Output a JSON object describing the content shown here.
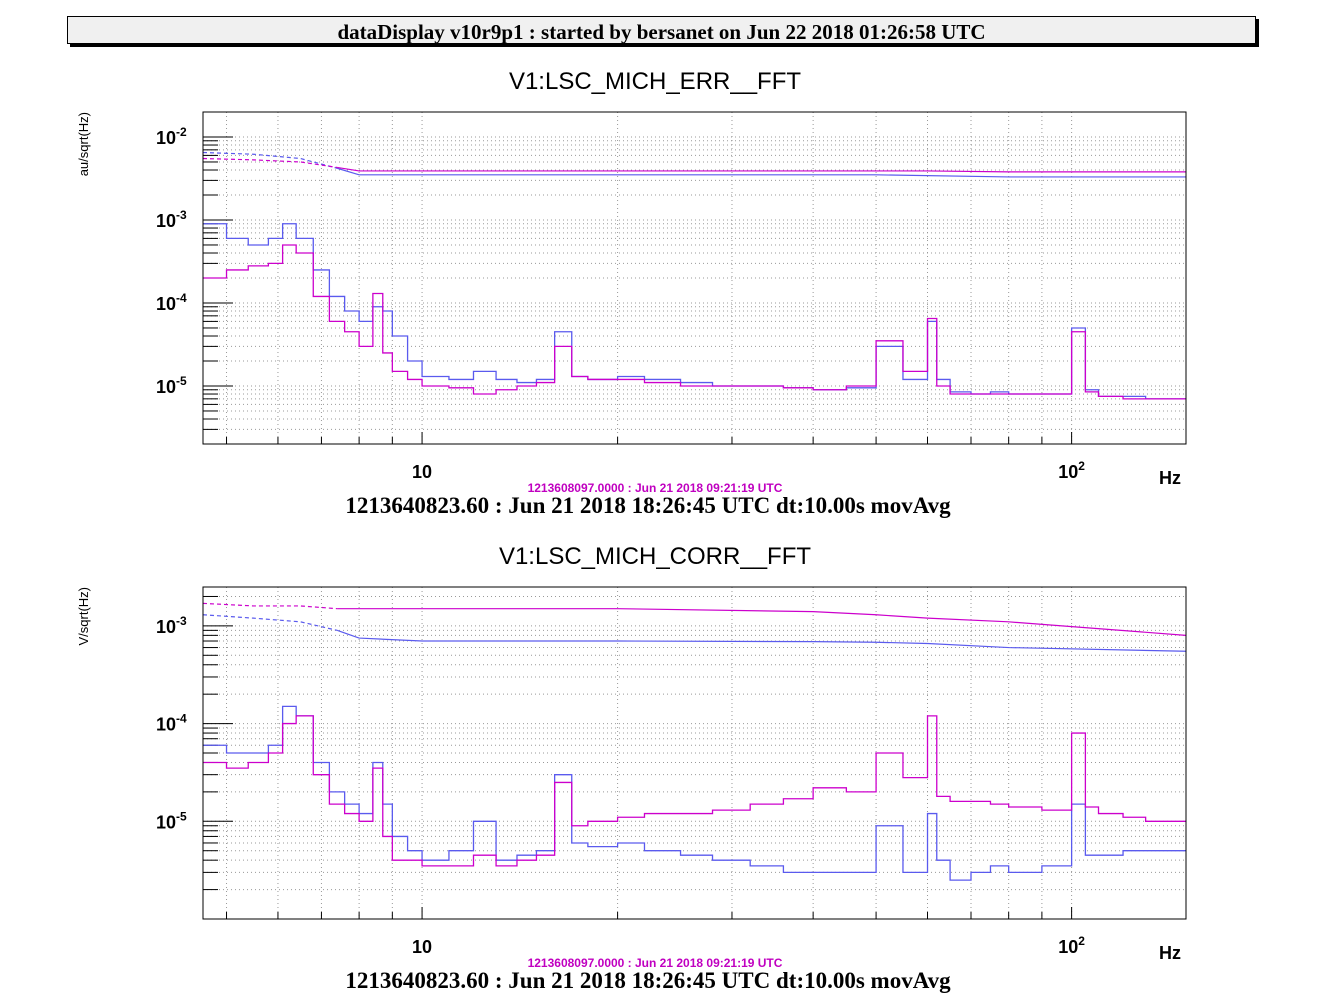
{
  "header": {
    "title": "dataDisplay v10r9p1 : started by bersanet on Jun 22 2018 01:26:58 UTC"
  },
  "colors": {
    "magenta": "#cc00cc",
    "blue": "#5a5aee",
    "header_bg": "#f0f0f0"
  },
  "panels": [
    {
      "title": "V1:LSC_MICH_ERR__FFT",
      "reference_time": "1213608097.0000 : Jun 21 2018 09:21:19 UTC",
      "footer": "1213640823.60 : Jun 21 2018 18:26:45 UTC dt:10.00s movAvg"
    },
    {
      "title": "V1:LSC_MICH_CORR__FFT",
      "reference_time": "1213608097.0000 : Jun 21 2018 09:21:19 UTC",
      "footer": "1213640823.60 : Jun 21 2018 18:26:45 UTC dt:10.00s movAvg"
    }
  ],
  "chart_data": [
    {
      "type": "line",
      "title": "V1:LSC_MICH_ERR__FFT",
      "xlabel": "Hz",
      "ylabel": "au/sqrt(Hz)",
      "xscale": "log",
      "yscale": "log",
      "xlim": [
        4.6,
        150
      ],
      "ylim": [
        2e-06,
        0.02
      ],
      "grid": true,
      "x_ticks": [
        {
          "value": 10,
          "base": "10",
          "exp": ""
        },
        {
          "value": 100,
          "base": "10",
          "exp": "2"
        }
      ],
      "y_ticks": [
        {
          "value": 0.01,
          "base": "10",
          "exp": "-2"
        },
        {
          "value": 0.001,
          "base": "10",
          "exp": "-3"
        },
        {
          "value": 0.0001,
          "base": "10",
          "exp": "-4"
        },
        {
          "value": 1e-05,
          "base": "10",
          "exp": "-5"
        }
      ],
      "series": [
        {
          "color": "#5a5aee",
          "style": "step",
          "x": [
            4.6,
            5,
            5.4,
            5.8,
            6.1,
            6.4,
            6.8,
            7.2,
            7.6,
            8.0,
            8.4,
            8.7,
            9.0,
            9.5,
            10,
            11,
            12,
            13,
            14,
            15,
            16,
            17,
            18,
            20,
            22,
            25,
            28,
            32,
            36,
            40,
            45,
            50,
            55,
            60,
            62,
            65,
            70,
            75,
            80,
            90,
            100,
            105,
            110,
            120,
            130,
            140,
            150
          ],
          "y": [
            0.0009,
            0.0006,
            0.0005,
            0.0006,
            0.0009,
            0.0006,
            0.00025,
            0.00012,
            8e-05,
            6e-05,
            9e-05,
            8e-05,
            4e-05,
            2e-05,
            1.3e-05,
            1.2e-05,
            1.5e-05,
            1.2e-05,
            1.1e-05,
            1.2e-05,
            4.5e-05,
            1.3e-05,
            1.2e-05,
            1.3e-05,
            1.2e-05,
            1.1e-05,
            1e-05,
            1e-05,
            9.5e-06,
            9e-06,
            9.5e-06,
            3e-05,
            1.2e-05,
            6e-05,
            1.2e-05,
            8.5e-06,
            8e-06,
            8.5e-06,
            8e-06,
            8e-06,
            5e-05,
            9e-06,
            7.5e-06,
            7.5e-06,
            7e-06,
            7e-06,
            7e-06
          ]
        },
        {
          "color": "#cc00cc",
          "style": "step",
          "x": [
            4.6,
            5,
            5.4,
            5.8,
            6.1,
            6.4,
            6.8,
            7.2,
            7.6,
            8.0,
            8.4,
            8.7,
            9.0,
            9.5,
            10,
            11,
            12,
            13,
            14,
            15,
            16,
            17,
            18,
            20,
            22,
            25,
            28,
            32,
            36,
            40,
            45,
            50,
            55,
            60,
            62,
            65,
            70,
            75,
            80,
            90,
            100,
            105,
            110,
            120,
            130,
            140,
            150
          ],
          "y": [
            0.0002,
            0.00025,
            0.00028,
            0.0003,
            0.0005,
            0.0004,
            0.00012,
            6e-05,
            4.5e-05,
            3e-05,
            0.00013,
            2.5e-05,
            1.5e-05,
            1.2e-05,
            1e-05,
            9.5e-06,
            8e-06,
            9e-06,
            1e-05,
            1.1e-05,
            3e-05,
            1.3e-05,
            1.2e-05,
            1.2e-05,
            1.1e-05,
            1e-05,
            1e-05,
            1e-05,
            9.5e-06,
            9e-06,
            1e-05,
            3.5e-05,
            1.5e-05,
            6.5e-05,
            1e-05,
            8e-06,
            8e-06,
            8e-06,
            8e-06,
            8e-06,
            4.5e-05,
            8.5e-06,
            7.5e-06,
            7e-06,
            7e-06,
            7e-06,
            7e-06
          ]
        },
        {
          "color": "#5a5aee",
          "style": "dashed-then-solid",
          "dash_until": 7.4,
          "x": [
            4.6,
            5.5,
            6.5,
            7.4,
            8.0,
            10,
            20,
            50,
            80,
            150
          ],
          "y": [
            0.0065,
            0.0062,
            0.0055,
            0.0042,
            0.0035,
            0.0035,
            0.0035,
            0.0035,
            0.0033,
            0.0033
          ]
        },
        {
          "color": "#cc00cc",
          "style": "dashed-then-solid",
          "dash_until": 7.4,
          "x": [
            4.6,
            5.5,
            6.5,
            7.4,
            8.0,
            10,
            20,
            50,
            60,
            80,
            150
          ],
          "y": [
            0.0055,
            0.0053,
            0.005,
            0.0043,
            0.0039,
            0.0039,
            0.0039,
            0.0039,
            0.0039,
            0.0038,
            0.0038
          ]
        }
      ]
    },
    {
      "type": "line",
      "title": "V1:LSC_MICH_CORR__FFT",
      "xlabel": "Hz",
      "ylabel": "V/sqrt(Hz)",
      "xscale": "log",
      "yscale": "log",
      "xlim": [
        4.6,
        150
      ],
      "ylim": [
        1e-06,
        0.0025
      ],
      "grid": true,
      "x_ticks": [
        {
          "value": 10,
          "base": "10",
          "exp": ""
        },
        {
          "value": 100,
          "base": "10",
          "exp": "2"
        }
      ],
      "y_ticks": [
        {
          "value": 0.001,
          "base": "10",
          "exp": "-3"
        },
        {
          "value": 0.0001,
          "base": "10",
          "exp": "-4"
        },
        {
          "value": 1e-05,
          "base": "10",
          "exp": "-5"
        }
      ],
      "series": [
        {
          "color": "#5a5aee",
          "style": "step",
          "x": [
            4.6,
            5,
            5.4,
            5.8,
            6.1,
            6.4,
            6.8,
            7.2,
            7.6,
            8.0,
            8.4,
            8.7,
            9.0,
            9.5,
            10,
            11,
            12,
            13,
            14,
            15,
            16,
            17,
            18,
            20,
            22,
            25,
            28,
            32,
            36,
            40,
            45,
            50,
            55,
            60,
            62,
            65,
            70,
            75,
            80,
            90,
            100,
            105,
            110,
            120,
            130,
            140,
            150
          ],
          "y": [
            6e-05,
            5e-05,
            5e-05,
            6e-05,
            0.00015,
            0.00012,
            4e-05,
            2e-05,
            1.5e-05,
            1.2e-05,
            4e-05,
            1.5e-05,
            7e-06,
            5e-06,
            4e-06,
            5e-06,
            1e-05,
            4e-06,
            4.5e-06,
            5e-06,
            3e-05,
            6e-06,
            5.5e-06,
            6e-06,
            5e-06,
            4.5e-06,
            4e-06,
            3.5e-06,
            3e-06,
            3e-06,
            3e-06,
            9e-06,
            3e-06,
            1.2e-05,
            4e-06,
            2.5e-06,
            3e-06,
            3.5e-06,
            3e-06,
            3.5e-06,
            1.5e-05,
            4.5e-06,
            4.5e-06,
            5e-06,
            5e-06,
            5e-06,
            5e-06
          ]
        },
        {
          "color": "#cc00cc",
          "style": "step",
          "x": [
            4.6,
            5,
            5.4,
            5.8,
            6.1,
            6.4,
            6.8,
            7.2,
            7.6,
            8.0,
            8.4,
            8.7,
            9.0,
            9.5,
            10,
            11,
            12,
            13,
            14,
            15,
            16,
            17,
            18,
            20,
            22,
            25,
            28,
            32,
            36,
            40,
            45,
            50,
            55,
            60,
            62,
            65,
            70,
            75,
            80,
            90,
            100,
            105,
            110,
            120,
            130,
            140,
            150
          ],
          "y": [
            4e-05,
            3.5e-05,
            4e-05,
            5e-05,
            0.0001,
            0.00012,
            3e-05,
            1.5e-05,
            1.2e-05,
            1e-05,
            3.5e-05,
            7e-06,
            4e-06,
            4e-06,
            3.5e-06,
            3.5e-06,
            4.5e-06,
            3.5e-06,
            4e-06,
            4.5e-06,
            2.5e-05,
            9e-06,
            1e-05,
            1.1e-05,
            1.2e-05,
            1.2e-05,
            1.3e-05,
            1.5e-05,
            1.7e-05,
            2.2e-05,
            2e-05,
            5e-05,
            2.8e-05,
            0.00012,
            1.8e-05,
            1.6e-05,
            1.6e-05,
            1.5e-05,
            1.4e-05,
            1.3e-05,
            8e-05,
            1.4e-05,
            1.2e-05,
            1.1e-05,
            1e-05,
            1e-05,
            1e-05
          ]
        },
        {
          "color": "#5a5aee",
          "style": "dashed-then-solid",
          "dash_until": 7.4,
          "x": [
            4.6,
            5.5,
            6.5,
            7.4,
            8.0,
            10,
            20,
            40,
            50,
            60,
            80,
            150
          ],
          "y": [
            0.0013,
            0.0012,
            0.0011,
            0.0009,
            0.00075,
            0.0007,
            0.0007,
            0.00069,
            0.00068,
            0.00066,
            0.0006,
            0.00055
          ]
        },
        {
          "color": "#cc00cc",
          "style": "dashed-then-solid",
          "dash_until": 7.4,
          "x": [
            4.6,
            5.5,
            6.5,
            7.4,
            8.0,
            10,
            20,
            40,
            50,
            60,
            80,
            150
          ],
          "y": [
            0.0017,
            0.0016,
            0.0016,
            0.0015,
            0.0015,
            0.0015,
            0.0015,
            0.0014,
            0.0013,
            0.0012,
            0.0011,
            0.0008
          ]
        }
      ]
    }
  ]
}
